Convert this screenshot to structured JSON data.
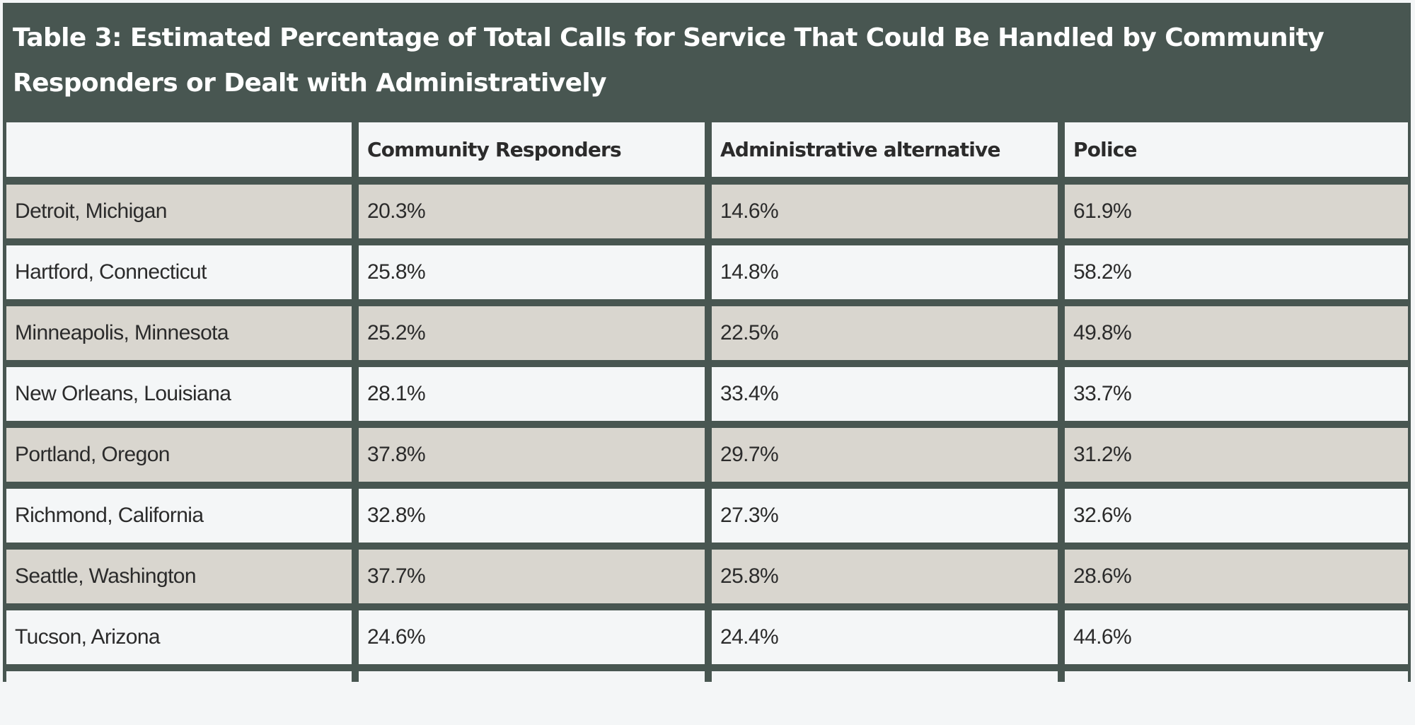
{
  "table": {
    "title": "Table 3: Estimated Percentage of Total Calls for Service That Could Be Handled by Community Responders or Dealt with Administratively",
    "columns": [
      "",
      "Community Responders",
      "Administrative alternative",
      "Police"
    ],
    "rows": [
      {
        "city": "Detroit, Michigan",
        "community": "20.3%",
        "administrative": "14.6%",
        "police": "61.9%"
      },
      {
        "city": "Hartford, Connecticut",
        "community": "25.8%",
        "administrative": "14.8%",
        "police": "58.2%"
      },
      {
        "city": "Minneapolis, Minnesota",
        "community": "25.2%",
        "administrative": "22.5%",
        "police": "49.8%"
      },
      {
        "city": "New Orleans, Louisiana",
        "community": "28.1%",
        "administrative": "33.4%",
        "police": "33.7%"
      },
      {
        "city": "Portland, Oregon",
        "community": "37.8%",
        "administrative": "29.7%",
        "police": "31.2%"
      },
      {
        "city": "Richmond, California",
        "community": "32.8%",
        "administrative": "27.3%",
        "police": "32.6%"
      },
      {
        "city": "Seattle, Washington",
        "community": "37.7%",
        "administrative": "25.8%",
        "police": "28.6%"
      },
      {
        "city": "Tucson, Arizona",
        "community": "24.6%",
        "administrative": "24.4%",
        "police": "44.6%"
      }
    ]
  },
  "colors": {
    "frame": "#485651",
    "row_shaded": "#d9d6cf",
    "row_plain": "#f4f6f7",
    "title_text": "#ffffff",
    "cell_text": "#2b2b2b"
  }
}
